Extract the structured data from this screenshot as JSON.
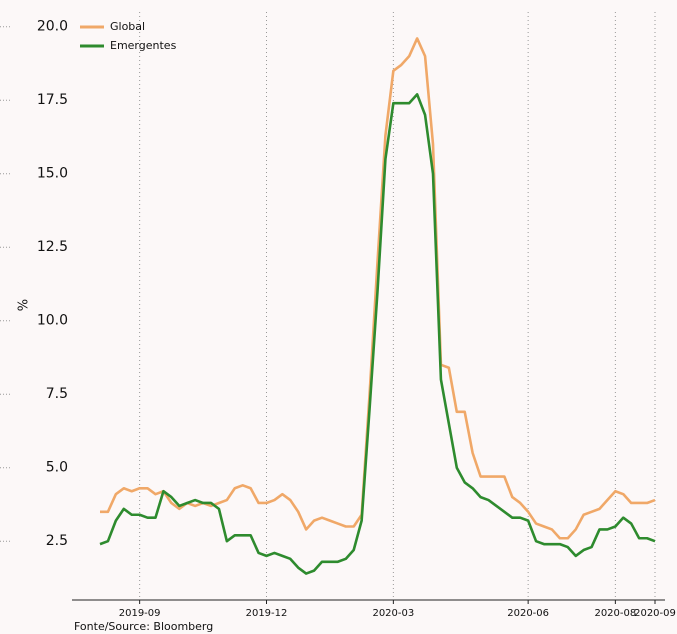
{
  "chart_data": {
    "type": "line",
    "y_label": "%",
    "source": "Fonte/Source: Bloomberg",
    "categories": [
      null,
      null,
      null,
      null,
      null,
      "2019-09",
      null,
      null,
      null,
      null,
      null,
      null,
      null,
      null,
      null,
      null,
      null,
      null,
      null,
      null,
      null,
      "2019-12",
      null,
      null,
      null,
      null,
      null,
      null,
      null,
      null,
      null,
      null,
      null,
      null,
      null,
      null,
      null,
      "2020-03",
      null,
      null,
      null,
      null,
      null,
      null,
      null,
      null,
      null,
      null,
      null,
      null,
      null,
      null,
      null,
      null,
      "2020-06",
      null,
      null,
      null,
      null,
      null,
      null,
      null,
      null,
      null,
      null,
      "2020-08",
      null,
      null,
      null,
      null,
      "2020-09"
    ],
    "series": [
      {
        "name": "Global",
        "color": "#f0a868",
        "values": [
          3.5,
          3.5,
          4.1,
          4.3,
          4.2,
          4.3,
          4.3,
          4.1,
          4.2,
          3.8,
          3.6,
          3.8,
          3.7,
          3.8,
          3.7,
          3.8,
          3.9,
          4.3,
          4.4,
          4.3,
          3.8,
          3.8,
          3.9,
          4.1,
          3.9,
          3.5,
          2.9,
          3.2,
          3.3,
          3.2,
          3.1,
          3.0,
          3.0,
          3.4,
          7.5,
          12.0,
          16.3,
          18.5,
          18.7,
          19.0,
          19.6,
          19.0,
          16.0,
          8.5,
          8.4,
          6.9,
          6.9,
          5.5,
          4.7,
          4.7,
          4.7,
          4.7,
          4.0,
          3.8,
          3.5,
          3.1,
          3.0,
          2.9,
          2.6,
          2.6,
          2.9,
          3.4,
          3.5,
          3.6,
          3.9,
          4.2,
          4.1,
          3.8,
          3.8,
          3.8,
          3.9
        ]
      },
      {
        "name": "Emergentes",
        "color": "#2e8b2e",
        "values": [
          2.4,
          2.5,
          3.2,
          3.6,
          3.4,
          3.4,
          3.3,
          3.3,
          4.2,
          4.0,
          3.7,
          3.8,
          3.9,
          3.8,
          3.8,
          3.6,
          2.5,
          2.7,
          2.7,
          2.7,
          2.1,
          2.0,
          2.1,
          2.0,
          1.9,
          1.6,
          1.4,
          1.5,
          1.8,
          1.8,
          1.8,
          1.9,
          2.2,
          3.2,
          7.0,
          11.0,
          15.5,
          17.4,
          17.4,
          17.4,
          17.7,
          17.0,
          15.0,
          8.0,
          6.5,
          5.0,
          4.5,
          4.3,
          4.0,
          3.9,
          3.7,
          3.5,
          3.3,
          3.3,
          3.2,
          2.5,
          2.4,
          2.4,
          2.4,
          2.3,
          2.0,
          2.2,
          2.3,
          2.9,
          2.9,
          3.0,
          3.3,
          3.1,
          2.6,
          2.6,
          2.5
        ]
      }
    ],
    "ylim": [
      0.5,
      20.5
    ],
    "yticks": [
      2.5,
      {
        "value": 5,
        "label": "5.0"
      },
      7.5,
      {
        "value": 10,
        "label": "10.0"
      },
      12.5,
      {
        "value": 15,
        "label": "15.0"
      },
      17.5,
      {
        "value": 20,
        "label": "20.0"
      }
    ],
    "grid": "x",
    "legend": "upper-left"
  }
}
